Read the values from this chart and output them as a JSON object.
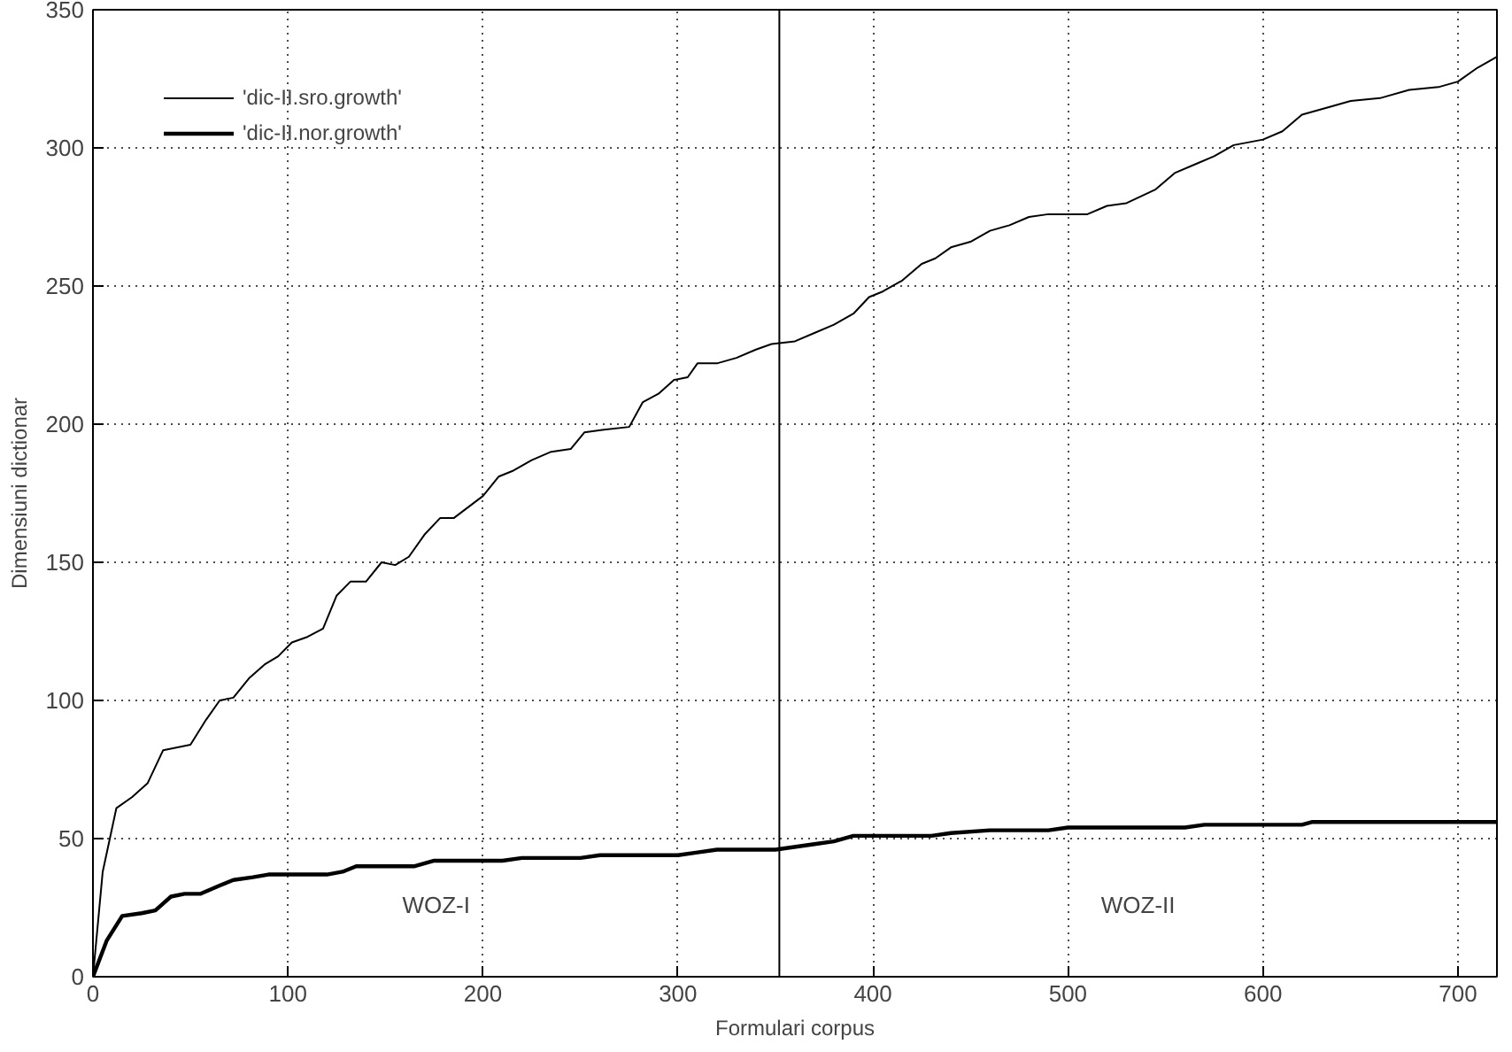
{
  "chart_data": {
    "type": "line",
    "xlabel": "Formulari corpus",
    "ylabel": "Dimensiuni dictionar",
    "xlim": [
      0,
      720
    ],
    "ylim": [
      0,
      350
    ],
    "xticks": [
      0,
      100,
      200,
      300,
      400,
      500,
      600,
      700
    ],
    "yticks": [
      0,
      50,
      100,
      150,
      200,
      250,
      300,
      350
    ],
    "grid": true,
    "legend": "top left",
    "line_style": "solid",
    "ref_lines": [
      {
        "axis": "x",
        "value": 352,
        "label": null,
        "color": "#000000"
      }
    ],
    "annotations": [
      "WOZ-I",
      "WOZ-II"
    ],
    "series": [
      {
        "name": "'dic-II.sro.growth'",
        "color": "#000000",
        "x": [
          0,
          5,
          12,
          20,
          28,
          36,
          50,
          58,
          65,
          72,
          80,
          88,
          95,
          102,
          110,
          118,
          125,
          132,
          140,
          148,
          155,
          162,
          170,
          178,
          185,
          200,
          208,
          215,
          225,
          235,
          245,
          252,
          262,
          275,
          282,
          290,
          298,
          305,
          310,
          320,
          330,
          340,
          348,
          360,
          370,
          380,
          390,
          398,
          405,
          415,
          425,
          432,
          440,
          450,
          460,
          470,
          480,
          490,
          510,
          520,
          530,
          545,
          555,
          565,
          575,
          585,
          600,
          610,
          620,
          635,
          645,
          660,
          675,
          690,
          700,
          710,
          720
        ],
        "values": [
          0,
          38,
          61,
          65,
          70,
          82,
          84,
          93,
          100,
          101,
          108,
          113,
          116,
          121,
          123,
          126,
          138,
          143,
          143,
          150,
          149,
          152,
          160,
          166,
          166,
          174,
          181,
          183,
          187,
          190,
          191,
          197,
          198,
          199,
          208,
          211,
          216,
          217,
          222,
          222,
          224,
          227,
          229,
          230,
          233,
          236,
          240,
          246,
          248,
          252,
          258,
          260,
          264,
          266,
          270,
          272,
          275,
          276,
          276,
          279,
          280,
          285,
          291,
          294,
          297,
          301,
          303,
          306,
          312,
          315,
          317,
          318,
          321,
          322,
          324,
          329,
          333
        ]
      },
      {
        "name": "'dic-II.nor.growth'",
        "color": "#000000",
        "x": [
          0,
          7,
          15,
          25,
          32,
          40,
          47,
          55,
          65,
          72,
          82,
          90,
          120,
          128,
          135,
          165,
          175,
          210,
          220,
          250,
          260,
          300,
          310,
          320,
          350,
          370,
          380,
          390,
          430,
          440,
          460,
          490,
          500,
          560,
          570,
          620,
          625,
          720
        ],
        "values": [
          0,
          13,
          22,
          23,
          24,
          29,
          30,
          30,
          33,
          35,
          36,
          37,
          37,
          38,
          40,
          40,
          42,
          42,
          43,
          43,
          44,
          44,
          45,
          46,
          46,
          48,
          49,
          51,
          51,
          52,
          53,
          53,
          54,
          54,
          55,
          55,
          56,
          56
        ]
      }
    ]
  }
}
